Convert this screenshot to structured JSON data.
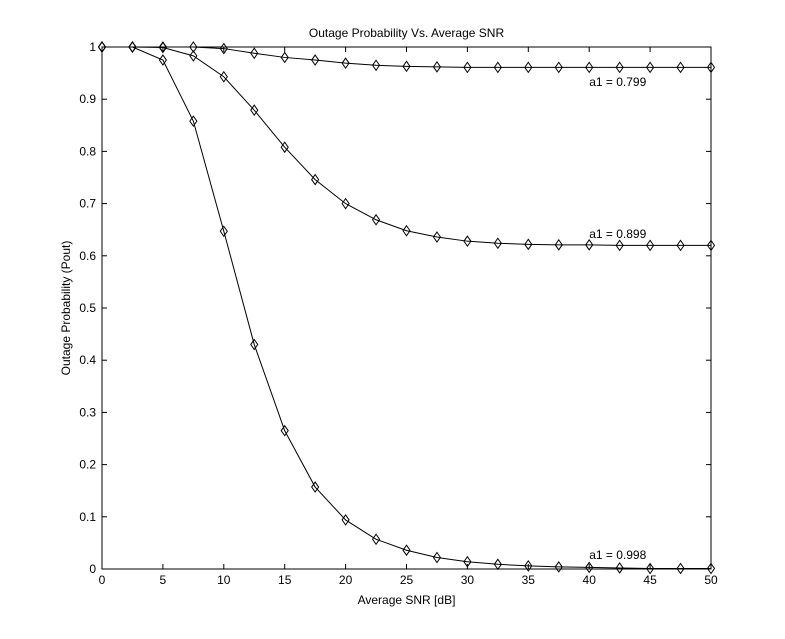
{
  "chart_data": {
    "type": "line",
    "title": "Outage Probability Vs. Average SNR",
    "xlabel": "Average SNR [dB]",
    "ylabel": "Outage Probability (Pout)",
    "xlim": [
      0,
      50
    ],
    "ylim": [
      0,
      1
    ],
    "xticks": [
      0,
      5,
      10,
      15,
      20,
      25,
      30,
      35,
      40,
      45,
      50
    ],
    "yticks": [
      0,
      0.1,
      0.2,
      0.3,
      0.4,
      0.5,
      0.6,
      0.7,
      0.8,
      0.9,
      1
    ],
    "xtick_labels": [
      "0",
      "5",
      "10",
      "15",
      "20",
      "25",
      "30",
      "35",
      "40",
      "45",
      "50"
    ],
    "ytick_labels": [
      "0",
      "0.1",
      "0.2",
      "0.3",
      "0.4",
      "0.5",
      "0.6",
      "0.7",
      "0.8",
      "0.9",
      "1"
    ],
    "grid": false,
    "marker": "diamond",
    "line_color": "#000000",
    "x": [
      0,
      2.5,
      5,
      7.5,
      10,
      12.5,
      15,
      17.5,
      20,
      22.5,
      25,
      27.5,
      30,
      32.5,
      35,
      37.5,
      40,
      42.5,
      45,
      47.5,
      50
    ],
    "series": [
      {
        "values": [
          1,
          1,
          1,
          1,
          0.997,
          0.988,
          0.98,
          0.975,
          0.969,
          0.965,
          0.963,
          0.962,
          0.961,
          0.961,
          0.961,
          0.961,
          0.961,
          0.961,
          0.961,
          0.961,
          0.961
        ]
      },
      {
        "values": [
          1,
          1,
          0.999,
          0.983,
          0.943,
          0.879,
          0.808,
          0.746,
          0.7,
          0.669,
          0.648,
          0.636,
          0.628,
          0.624,
          0.622,
          0.621,
          0.621,
          0.62,
          0.62,
          0.62,
          0.62
        ]
      },
      {
        "values": [
          1,
          1,
          0.975,
          0.858,
          0.647,
          0.43,
          0.265,
          0.157,
          0.094,
          0.057,
          0.036,
          0.022,
          0.014,
          0.009,
          0.006,
          0.004,
          0.003,
          0.002,
          0.001,
          0.001,
          0.001
        ]
      }
    ],
    "annotations": [
      {
        "text": "a1 = 0.799",
        "x": 40,
        "y": 0.933
      },
      {
        "text": "a1 = 0.899",
        "x": 40,
        "y": 0.642
      },
      {
        "text": "a1 = 0.998",
        "x": 40,
        "y": 0.027
      }
    ]
  }
}
